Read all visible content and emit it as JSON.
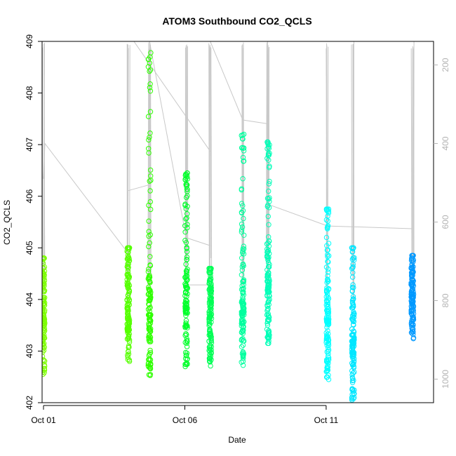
{
  "chart_data": {
    "type": "scatter",
    "title": "ATOM3 Southbound CO2_QCLS",
    "xlabel": "Date",
    "ylabel": "CO2_QCLS",
    "x_ticks": [
      "Oct 01",
      "Oct 06",
      "Oct 11"
    ],
    "x_tick_days": [
      1,
      6,
      11
    ],
    "xlim_days": [
      0.95,
      14.8
    ],
    "ylim": [
      402,
      409
    ],
    "y_ticks": [
      402,
      403,
      404,
      405,
      406,
      407,
      408,
      409
    ],
    "secondary_y": {
      "ticks": [
        200,
        400,
        600,
        800,
        1000
      ],
      "lim": [
        1060,
        140
      ],
      "color": "#b3b3b3"
    },
    "grid": false,
    "legend": "none",
    "marker": "open-circle",
    "series": [
      {
        "day": 1.0,
        "ymin": 402.55,
        "ymax": 404.8,
        "color": "#7cff00"
      },
      {
        "day": 4.0,
        "ymin": 402.8,
        "ymax": 405.0,
        "color": "#55ff00"
      },
      {
        "day": 4.75,
        "ymin": 402.5,
        "ymax": 408.8,
        "color": "#2fff00"
      },
      {
        "day": 6.05,
        "ymin": 402.7,
        "ymax": 406.45,
        "color": "#00ff2a"
      },
      {
        "day": 6.9,
        "ymin": 402.7,
        "ymax": 404.6,
        "color": "#00ff55"
      },
      {
        "day": 8.05,
        "ymin": 402.7,
        "ymax": 407.2,
        "color": "#00ff9e"
      },
      {
        "day": 8.95,
        "ymin": 403.15,
        "ymax": 407.05,
        "color": "#00ffb8"
      },
      {
        "day": 11.05,
        "ymin": 402.45,
        "ymax": 405.75,
        "color": "#00ffff"
      },
      {
        "day": 11.95,
        "ymin": 402.05,
        "ymax": 405.0,
        "color": "#00e6ff"
      },
      {
        "day": 14.05,
        "ymin": 403.2,
        "ymax": 404.85,
        "color": "#0099ff"
      }
    ],
    "pressure_trace_color": "#c8c8c8"
  }
}
